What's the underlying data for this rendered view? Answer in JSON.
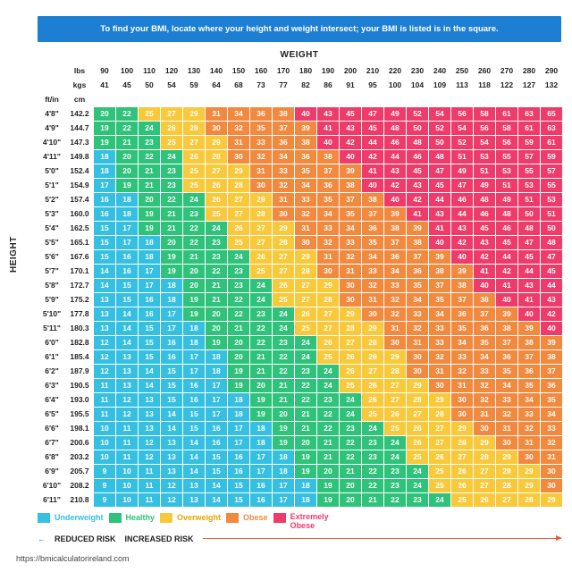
{
  "banner": "To find your BMI, locate where your height and weight intersect; your BMI is listed is in the square.",
  "axis": {
    "weight": "WEIGHT",
    "height": "HEIGHT"
  },
  "header": {
    "lbs": "lbs",
    "kgs": "kgs",
    "ftin": "ft/in",
    "cm": "cm"
  },
  "weights": {
    "lbs": [
      "90",
      "100",
      "110",
      "120",
      "130",
      "140",
      "150",
      "160",
      "170",
      "180",
      "190",
      "200",
      "210",
      "220",
      "230",
      "240",
      "250",
      "260",
      "270",
      "280",
      "290"
    ],
    "kgs": [
      "41",
      "45",
      "50",
      "54",
      "59",
      "64",
      "68",
      "73",
      "77",
      "82",
      "86",
      "91",
      "95",
      "100",
      "104",
      "109",
      "113",
      "118",
      "122",
      "127",
      "132"
    ]
  },
  "heights": {
    "ftin": [
      "4'8\"",
      "4'9\"",
      "4'10\"",
      "4'11\"",
      "5'0\"",
      "5'1\"",
      "5'2\"",
      "5'3\"",
      "5'4\"",
      "5'5\"",
      "5'6\"",
      "5'7\"",
      "5'8\"",
      "5'9\"",
      "5'10\"",
      "5'11\"",
      "6'0\"",
      "6'1\"",
      "6'2\"",
      "6'3\"",
      "6'4\"",
      "6'5\"",
      "6'6\"",
      "6'7\"",
      "6'8\"",
      "6'9\"",
      "6'10\"",
      "6'11\""
    ],
    "cm": [
      "142.2",
      "144.7",
      "147.3",
      "149.8",
      "152.4",
      "154.9",
      "157.4",
      "160.0",
      "162.5",
      "165.1",
      "167.6",
      "170.1",
      "172.7",
      "175.2",
      "177.8",
      "180.3",
      "182.8",
      "185.4",
      "187.9",
      "190.5",
      "193.0",
      "195.5",
      "198.1",
      "200.6",
      "203.2",
      "205.7",
      "208.2",
      "210.8"
    ]
  },
  "bmi": [
    [
      20,
      22,
      25,
      27,
      29,
      31,
      34,
      36,
      38,
      40,
      43,
      45,
      47,
      49,
      52,
      54,
      56,
      58,
      61,
      63,
      65
    ],
    [
      19,
      22,
      24,
      26,
      28,
      30,
      32,
      35,
      37,
      39,
      41,
      43,
      45,
      48,
      50,
      52,
      54,
      56,
      58,
      61,
      63
    ],
    [
      19,
      21,
      23,
      25,
      27,
      29,
      31,
      33,
      36,
      38,
      40,
      42,
      44,
      46,
      48,
      50,
      52,
      54,
      56,
      59,
      61
    ],
    [
      18,
      20,
      22,
      24,
      26,
      28,
      30,
      32,
      34,
      36,
      38,
      40,
      42,
      44,
      46,
      48,
      51,
      53,
      55,
      57,
      59
    ],
    [
      18,
      20,
      21,
      23,
      25,
      27,
      29,
      31,
      33,
      35,
      37,
      39,
      41,
      43,
      45,
      47,
      49,
      51,
      53,
      55,
      57
    ],
    [
      17,
      19,
      21,
      23,
      25,
      26,
      28,
      30,
      32,
      34,
      36,
      38,
      40,
      42,
      43,
      45,
      47,
      49,
      51,
      53,
      55
    ],
    [
      16,
      18,
      20,
      22,
      24,
      26,
      27,
      29,
      31,
      33,
      35,
      37,
      38,
      40,
      42,
      44,
      46,
      48,
      49,
      51,
      53
    ],
    [
      16,
      18,
      19,
      21,
      23,
      25,
      27,
      28,
      30,
      32,
      34,
      35,
      37,
      39,
      41,
      43,
      44,
      46,
      48,
      50,
      51
    ],
    [
      15,
      17,
      19,
      21,
      22,
      24,
      26,
      27,
      29,
      31,
      33,
      34,
      36,
      38,
      39,
      41,
      43,
      45,
      46,
      48,
      50
    ],
    [
      15,
      17,
      18,
      20,
      22,
      23,
      25,
      27,
      28,
      30,
      32,
      33,
      35,
      37,
      38,
      40,
      42,
      43,
      45,
      47,
      48
    ],
    [
      15,
      16,
      18,
      19,
      21,
      23,
      24,
      26,
      27,
      29,
      31,
      32,
      34,
      36,
      37,
      39,
      40,
      42,
      44,
      45,
      47
    ],
    [
      14,
      16,
      17,
      19,
      20,
      22,
      23,
      25,
      27,
      28,
      30,
      31,
      33,
      34,
      36,
      38,
      39,
      41,
      42,
      44,
      45
    ],
    [
      14,
      15,
      17,
      18,
      20,
      21,
      23,
      24,
      26,
      27,
      29,
      30,
      32,
      33,
      35,
      37,
      38,
      40,
      41,
      43,
      44
    ],
    [
      13,
      15,
      16,
      18,
      19,
      21,
      22,
      24,
      25,
      27,
      28,
      30,
      31,
      32,
      34,
      35,
      37,
      38,
      40,
      41,
      43
    ],
    [
      13,
      14,
      16,
      17,
      19,
      20,
      22,
      23,
      24,
      26,
      27,
      29,
      30,
      32,
      33,
      34,
      36,
      37,
      39,
      40,
      42
    ],
    [
      13,
      14,
      15,
      17,
      18,
      20,
      21,
      22,
      24,
      25,
      27,
      28,
      29,
      31,
      32,
      33,
      35,
      36,
      38,
      39,
      40
    ],
    [
      12,
      14,
      15,
      16,
      18,
      19,
      20,
      22,
      23,
      24,
      26,
      27,
      28,
      30,
      31,
      33,
      34,
      35,
      37,
      38,
      39
    ],
    [
      12,
      13,
      15,
      16,
      17,
      18,
      20,
      21,
      22,
      24,
      25,
      26,
      28,
      29,
      30,
      32,
      33,
      34,
      36,
      37,
      38
    ],
    [
      12,
      13,
      14,
      15,
      17,
      18,
      19,
      21,
      22,
      23,
      24,
      26,
      27,
      28,
      30,
      31,
      32,
      33,
      35,
      36,
      37
    ],
    [
      11,
      13,
      14,
      15,
      16,
      17,
      19,
      20,
      21,
      22,
      24,
      25,
      26,
      27,
      29,
      30,
      31,
      32,
      34,
      35,
      36
    ],
    [
      11,
      12,
      13,
      15,
      16,
      17,
      18,
      19,
      21,
      22,
      23,
      24,
      26,
      27,
      28,
      29,
      30,
      32,
      33,
      34,
      35
    ],
    [
      11,
      12,
      13,
      14,
      15,
      17,
      18,
      19,
      20,
      21,
      22,
      24,
      25,
      26,
      27,
      28,
      30,
      31,
      32,
      33,
      34
    ],
    [
      10,
      11,
      13,
      14,
      15,
      16,
      17,
      18,
      19,
      21,
      22,
      23,
      24,
      25,
      26,
      27,
      29,
      30,
      31,
      32,
      33
    ],
    [
      10,
      11,
      12,
      13,
      14,
      16,
      17,
      18,
      19,
      20,
      21,
      22,
      23,
      24,
      26,
      27,
      28,
      29,
      30,
      31,
      32
    ],
    [
      10,
      11,
      12,
      13,
      14,
      15,
      16,
      17,
      18,
      19,
      21,
      22,
      23,
      24,
      25,
      26,
      27,
      28,
      29,
      30,
      31
    ],
    [
      9,
      10,
      11,
      13,
      14,
      15,
      16,
      17,
      18,
      19,
      20,
      21,
      22,
      23,
      24,
      25,
      26,
      27,
      28,
      29,
      30
    ],
    [
      9,
      10,
      11,
      12,
      13,
      14,
      15,
      16,
      17,
      18,
      19,
      20,
      22,
      23,
      24,
      25,
      26,
      27,
      28,
      29,
      30
    ],
    [
      9,
      10,
      11,
      12,
      13,
      14,
      15,
      16,
      17,
      18,
      19,
      20,
      21,
      22,
      23,
      24,
      25,
      26,
      27,
      28,
      29
    ]
  ],
  "colors": {
    "underweight": {
      "hex": "#35bfe0",
      "max": 18
    },
    "healthy": {
      "hex": "#2fc27a",
      "max": 24
    },
    "overweight": {
      "hex": "#f8c93a",
      "max": 29
    },
    "obese": {
      "hex": "#f18a3f",
      "max": 39
    },
    "extreme": {
      "hex": "#ef3b6a",
      "max": 999
    },
    "cell_text": "#ffffff",
    "banner_bg": "#1c7fd4"
  },
  "legend": {
    "underweight": "Underweight",
    "healthy": "Healthy",
    "overweight": "Overweight",
    "obese": "Obese",
    "extreme": "Extremely Obese"
  },
  "risk": {
    "reduced": "REDUCED RISK",
    "increased": "INCREASED RISK"
  },
  "source": "https://bmicalculatorireland.com"
}
